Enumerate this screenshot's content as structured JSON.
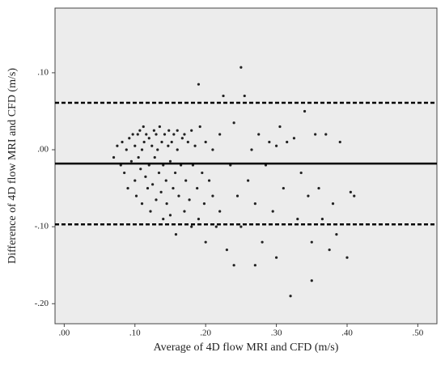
{
  "chart_data": {
    "type": "scatter",
    "x_label": "Average of 4D flow MRI and CFD (m/s)",
    "y_label": "Difference of 4D flow MRI and CFD (m/s)",
    "xlim": [
      -0.013,
      0.527
    ],
    "ylim": [
      -0.226,
      0.184
    ],
    "xticks": [
      {
        "value": 0,
        "label": ".00"
      },
      {
        "value": 0.1,
        "label": ".10"
      },
      {
        "value": 0.2,
        "label": ".20"
      },
      {
        "value": 0.3,
        "label": ".30"
      },
      {
        "value": 0.4,
        "label": ".40"
      },
      {
        "value": 0.5,
        "label": ".50"
      }
    ],
    "yticks": [
      {
        "value": -0.2,
        "label": "-.20"
      },
      {
        "value": -0.1,
        "label": "-.10"
      },
      {
        "value": 0,
        "label": ".00"
      },
      {
        "value": 0.1,
        "label": ".10"
      }
    ],
    "color": "#222222",
    "hlines": [
      {
        "value": 0.061,
        "style": "dashed"
      },
      {
        "value": -0.018,
        "style": "solid"
      },
      {
        "value": -0.097,
        "style": "dashed"
      }
    ],
    "series": [
      {
        "color": "#222222",
        "x": [
          0.07,
          0.075,
          0.08,
          0.082,
          0.085,
          0.088,
          0.09,
          0.092,
          0.095,
          0.097,
          0.1,
          0.1,
          0.102,
          0.104,
          0.105,
          0.107,
          0.108,
          0.11,
          0.11,
          0.112,
          0.113,
          0.115,
          0.116,
          0.118,
          0.12,
          0.12,
          0.122,
          0.124,
          0.125,
          0.127,
          0.128,
          0.13,
          0.13,
          0.132,
          0.134,
          0.135,
          0.137,
          0.138,
          0.14,
          0.14,
          0.142,
          0.144,
          0.145,
          0.147,
          0.148,
          0.15,
          0.15,
          0.152,
          0.154,
          0.155,
          0.157,
          0.158,
          0.16,
          0.16,
          0.162,
          0.165,
          0.167,
          0.17,
          0.17,
          0.172,
          0.175,
          0.177,
          0.18,
          0.18,
          0.182,
          0.185,
          0.188,
          0.19,
          0.19,
          0.192,
          0.195,
          0.198,
          0.2,
          0.2,
          0.205,
          0.21,
          0.21,
          0.215,
          0.22,
          0.22,
          0.225,
          0.23,
          0.235,
          0.24,
          0.24,
          0.245,
          0.25,
          0.25,
          0.255,
          0.26,
          0.265,
          0.27,
          0.27,
          0.275,
          0.28,
          0.285,
          0.29,
          0.295,
          0.3,
          0.3,
          0.305,
          0.31,
          0.315,
          0.32,
          0.325,
          0.33,
          0.335,
          0.34,
          0.345,
          0.35,
          0.35,
          0.355,
          0.36,
          0.365,
          0.37,
          0.375,
          0.38,
          0.385,
          0.39,
          0.4,
          0.405,
          0.41
        ],
        "values": [
          -0.01,
          0.005,
          -0.02,
          0.01,
          -0.03,
          0.0,
          -0.05,
          0.015,
          -0.015,
          0.02,
          -0.04,
          0.005,
          -0.06,
          0.02,
          -0.01,
          0.025,
          -0.025,
          0.0,
          -0.07,
          0.03,
          0.01,
          -0.035,
          0.02,
          -0.05,
          -0.02,
          0.015,
          -0.08,
          0.005,
          -0.045,
          0.025,
          -0.01,
          0.02,
          -0.065,
          0.0,
          -0.03,
          0.03,
          -0.055,
          0.01,
          -0.09,
          -0.02,
          0.02,
          -0.04,
          -0.07,
          0.005,
          0.025,
          -0.015,
          -0.085,
          0.01,
          -0.05,
          0.02,
          -0.03,
          -0.11,
          0.0,
          0.025,
          -0.06,
          -0.02,
          0.015,
          -0.08,
          0.02,
          -0.04,
          0.01,
          -0.065,
          -0.1,
          0.025,
          -0.02,
          0.005,
          -0.05,
          0.085,
          -0.09,
          0.03,
          -0.03,
          -0.07,
          0.01,
          -0.12,
          -0.04,
          -0.06,
          0.0,
          -0.1,
          0.02,
          -0.08,
          0.07,
          -0.13,
          -0.02,
          0.035,
          -0.15,
          -0.06,
          0.107,
          -0.1,
          0.07,
          -0.04,
          0.0,
          -0.15,
          -0.07,
          0.02,
          -0.12,
          -0.02,
          0.01,
          -0.08,
          0.005,
          -0.14,
          0.03,
          -0.05,
          0.01,
          -0.19,
          0.015,
          -0.09,
          -0.03,
          0.05,
          -0.06,
          -0.17,
          -0.12,
          0.02,
          -0.05,
          -0.09,
          0.02,
          -0.13,
          -0.07,
          -0.11,
          0.01,
          -0.14,
          -0.055,
          -0.06
        ]
      }
    ]
  }
}
